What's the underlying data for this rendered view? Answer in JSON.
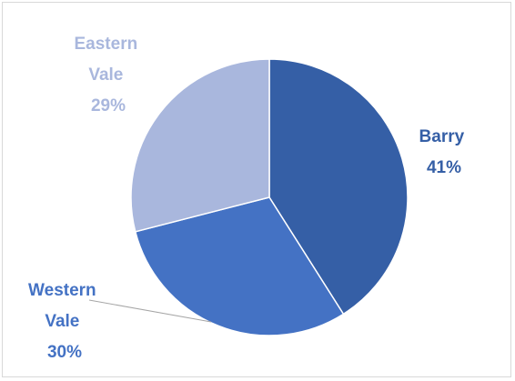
{
  "chart_data": {
    "type": "pie",
    "slices": [
      {
        "category": "Barry",
        "value": 41,
        "label_lines": [
          "Barry",
          "41%"
        ],
        "color": "#355fa6"
      },
      {
        "category": "Western Vale",
        "value": 30,
        "label_lines": [
          "Western",
          "Vale",
          "30%"
        ],
        "color": "#4472c4"
      },
      {
        "category": "Eastern Vale",
        "value": 29,
        "label_lines": [
          "Eastern",
          "Vale",
          "29%"
        ],
        "color": "#a9b7dd"
      }
    ],
    "start_angle_deg": 0,
    "direction": "clockwise",
    "legend": "none",
    "data_labels": "category and percentage, outside"
  }
}
